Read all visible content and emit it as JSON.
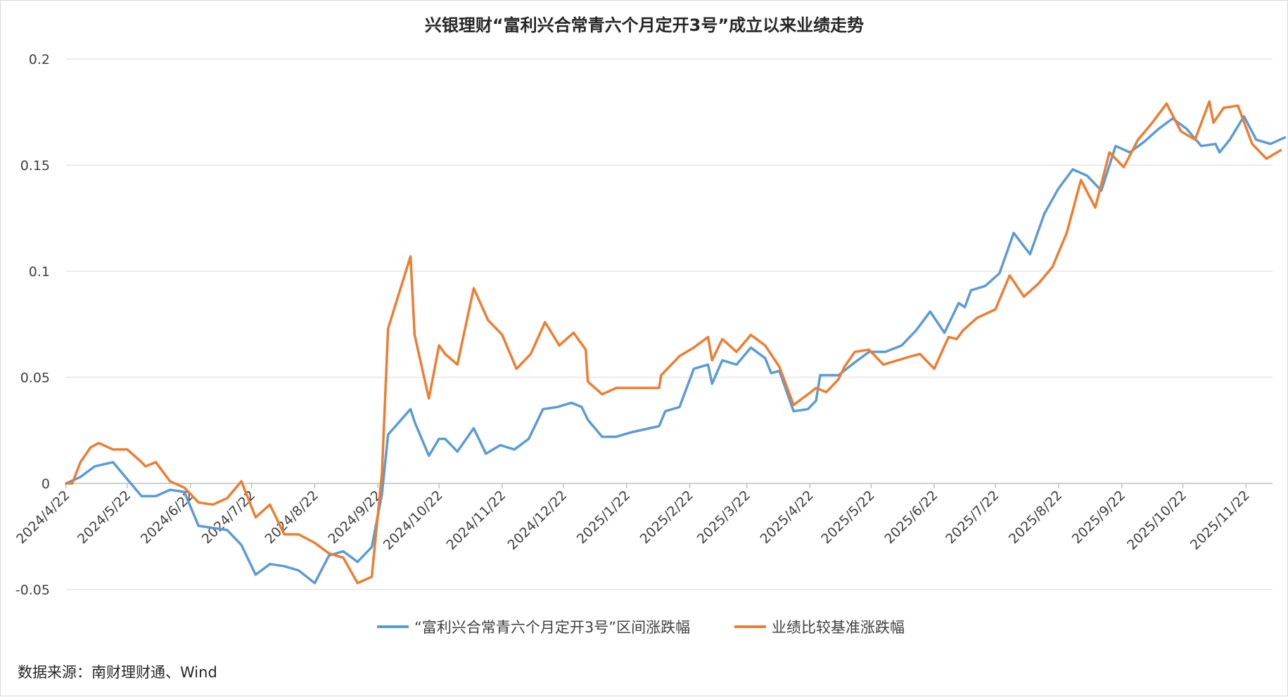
{
  "chart_data": {
    "type": "line",
    "title": "兴银理财“富利兴合常青六个月定开3号”成立以来业绩走势",
    "source_note": "数据来源：南财理财通、Wind",
    "legend_position": "bottom",
    "grid": true,
    "ylim": [
      -0.05,
      0.2
    ],
    "yticks": [
      -0.05,
      0,
      0.05,
      0.1,
      0.15,
      0.2
    ],
    "ytick_labels": [
      "-0.05",
      "0",
      "0.05",
      "0.1",
      "0.15",
      "0.2"
    ],
    "xlim": [
      "2024-04-22",
      "2025-12-05"
    ],
    "x_tick_dates": [
      "2024-04-22",
      "2024-05-22",
      "2024-06-22",
      "2024-07-22",
      "2024-08-22",
      "2024-09-22",
      "2024-10-22",
      "2024-11-22",
      "2024-12-22",
      "2025-01-22",
      "2025-02-22",
      "2025-03-22",
      "2025-04-22",
      "2025-05-22",
      "2025-06-22",
      "2025-07-22",
      "2025-08-22",
      "2025-09-22",
      "2025-10-22",
      "2025-11-22"
    ],
    "x_tick_labels": [
      "2024/4/22",
      "2024/5/22",
      "2024/6/22",
      "2024/7/22",
      "2024/8/22",
      "2024/9/22",
      "2024/10/22",
      "2024/11/22",
      "2024/12/22",
      "2025/1/22",
      "2025/2/22",
      "2025/3/22",
      "2025/4/22",
      "2025/5/22",
      "2025/6/22",
      "2025/7/22",
      "2025/8/22",
      "2025/9/22",
      "2025/10/22",
      "2025/11/22"
    ],
    "series": [
      {
        "name": "“富利兴合常青六个月定开3号”区间涨跌幅",
        "color": "#5b9bd5",
        "points": [
          [
            "2024-04-22",
            0.0
          ],
          [
            "2024-04-29",
            0.003
          ],
          [
            "2024-05-06",
            0.008
          ],
          [
            "2024-05-15",
            0.01
          ],
          [
            "2024-05-22",
            0.002
          ],
          [
            "2024-05-29",
            -0.006
          ],
          [
            "2024-06-05",
            -0.006
          ],
          [
            "2024-06-12",
            -0.003
          ],
          [
            "2024-06-19",
            -0.004
          ],
          [
            "2024-06-26",
            -0.02
          ],
          [
            "2024-07-03",
            -0.021
          ],
          [
            "2024-07-10",
            -0.022
          ],
          [
            "2024-07-17",
            -0.029
          ],
          [
            "2024-07-24",
            -0.043
          ],
          [
            "2024-07-31",
            -0.038
          ],
          [
            "2024-08-07",
            -0.039
          ],
          [
            "2024-08-14",
            -0.041
          ],
          [
            "2024-08-22",
            -0.047
          ],
          [
            "2024-08-29",
            -0.034
          ],
          [
            "2024-09-05",
            -0.032
          ],
          [
            "2024-09-12",
            -0.037
          ],
          [
            "2024-09-19",
            -0.03
          ],
          [
            "2024-09-24",
            -0.005
          ],
          [
            "2024-09-27",
            0.023
          ],
          [
            "2024-10-08",
            0.035
          ],
          [
            "2024-10-10",
            0.029
          ],
          [
            "2024-10-17",
            0.013
          ],
          [
            "2024-10-22",
            0.021
          ],
          [
            "2024-10-25",
            0.021
          ],
          [
            "2024-10-31",
            0.015
          ],
          [
            "2024-11-08",
            0.026
          ],
          [
            "2024-11-14",
            0.014
          ],
          [
            "2024-11-21",
            0.018
          ],
          [
            "2024-11-28",
            0.016
          ],
          [
            "2024-12-05",
            0.021
          ],
          [
            "2024-12-12",
            0.035
          ],
          [
            "2024-12-19",
            0.036
          ],
          [
            "2024-12-26",
            0.038
          ],
          [
            "2024-12-31",
            0.036
          ],
          [
            "2025-01-03",
            0.03
          ],
          [
            "2025-01-10",
            0.022
          ],
          [
            "2025-01-17",
            0.022
          ],
          [
            "2025-01-24",
            0.024
          ],
          [
            "2025-02-07",
            0.027
          ],
          [
            "2025-02-10",
            0.034
          ],
          [
            "2025-02-17",
            0.036
          ],
          [
            "2025-02-24",
            0.054
          ],
          [
            "2025-03-03",
            0.056
          ],
          [
            "2025-03-05",
            0.047
          ],
          [
            "2025-03-10",
            0.058
          ],
          [
            "2025-03-17",
            0.056
          ],
          [
            "2025-03-24",
            0.064
          ],
          [
            "2025-03-31",
            0.059
          ],
          [
            "2025-04-03",
            0.052
          ],
          [
            "2025-04-07",
            0.053
          ],
          [
            "2025-04-14",
            0.034
          ],
          [
            "2025-04-21",
            0.035
          ],
          [
            "2025-04-25",
            0.039
          ],
          [
            "2025-04-27",
            0.051
          ],
          [
            "2025-05-06",
            0.051
          ],
          [
            "2025-05-14",
            0.057
          ],
          [
            "2025-05-21",
            0.062
          ],
          [
            "2025-05-29",
            0.062
          ],
          [
            "2025-06-06",
            0.065
          ],
          [
            "2025-06-13",
            0.072
          ],
          [
            "2025-06-20",
            0.081
          ],
          [
            "2025-06-27",
            0.071
          ],
          [
            "2025-07-04",
            0.085
          ],
          [
            "2025-07-07",
            0.083
          ],
          [
            "2025-07-10",
            0.091
          ],
          [
            "2025-07-17",
            0.093
          ],
          [
            "2025-07-24",
            0.099
          ],
          [
            "2025-07-31",
            0.118
          ],
          [
            "2025-08-08",
            0.108
          ],
          [
            "2025-08-15",
            0.127
          ],
          [
            "2025-08-22",
            0.139
          ],
          [
            "2025-08-29",
            0.148
          ],
          [
            "2025-09-05",
            0.145
          ],
          [
            "2025-09-12",
            0.138
          ],
          [
            "2025-09-19",
            0.159
          ],
          [
            "2025-09-26",
            0.156
          ],
          [
            "2025-10-03",
            0.161
          ],
          [
            "2025-10-10",
            0.167
          ],
          [
            "2025-10-17",
            0.172
          ],
          [
            "2025-10-24",
            0.167
          ],
          [
            "2025-10-31",
            0.159
          ],
          [
            "2025-11-07",
            0.16
          ],
          [
            "2025-11-09",
            0.156
          ],
          [
            "2025-11-14",
            0.162
          ],
          [
            "2025-11-21",
            0.173
          ],
          [
            "2025-11-27",
            0.162
          ],
          [
            "2025-12-04",
            0.16
          ],
          [
            "2025-12-11",
            0.163
          ]
        ]
      },
      {
        "name": "业绩比较基准涨跌幅",
        "color": "#ed7d31",
        "points": [
          [
            "2024-04-22",
            0.0
          ],
          [
            "2024-04-25",
            0.0
          ],
          [
            "2024-04-29",
            0.01
          ],
          [
            "2024-05-04",
            0.017
          ],
          [
            "2024-05-08",
            0.019
          ],
          [
            "2024-05-15",
            0.016
          ],
          [
            "2024-05-22",
            0.016
          ],
          [
            "2024-05-29",
            0.01
          ],
          [
            "2024-05-31",
            0.008
          ],
          [
            "2024-06-05",
            0.01
          ],
          [
            "2024-06-12",
            0.001
          ],
          [
            "2024-06-19",
            -0.002
          ],
          [
            "2024-06-26",
            -0.009
          ],
          [
            "2024-07-03",
            -0.01
          ],
          [
            "2024-07-10",
            -0.007
          ],
          [
            "2024-07-17",
            0.001
          ],
          [
            "2024-07-24",
            -0.016
          ],
          [
            "2024-07-31",
            -0.01
          ],
          [
            "2024-08-07",
            -0.024
          ],
          [
            "2024-08-14",
            -0.024
          ],
          [
            "2024-08-22",
            -0.028
          ],
          [
            "2024-08-29",
            -0.033
          ],
          [
            "2024-09-05",
            -0.035
          ],
          [
            "2024-09-12",
            -0.047
          ],
          [
            "2024-09-19",
            -0.044
          ],
          [
            "2024-09-24",
            0.005
          ],
          [
            "2024-09-27",
            0.073
          ],
          [
            "2024-10-08",
            0.107
          ],
          [
            "2024-10-10",
            0.07
          ],
          [
            "2024-10-17",
            0.04
          ],
          [
            "2024-10-22",
            0.065
          ],
          [
            "2024-10-25",
            0.061
          ],
          [
            "2024-10-31",
            0.056
          ],
          [
            "2024-11-08",
            0.092
          ],
          [
            "2024-11-15",
            0.077
          ],
          [
            "2024-11-22",
            0.07
          ],
          [
            "2024-11-29",
            0.054
          ],
          [
            "2024-12-06",
            0.061
          ],
          [
            "2024-12-13",
            0.076
          ],
          [
            "2024-12-20",
            0.065
          ],
          [
            "2024-12-27",
            0.071
          ],
          [
            "2025-01-02",
            0.063
          ],
          [
            "2025-01-03",
            0.048
          ],
          [
            "2025-01-10",
            0.042
          ],
          [
            "2025-01-17",
            0.045
          ],
          [
            "2025-01-24",
            0.045
          ],
          [
            "2025-02-07",
            0.045
          ],
          [
            "2025-02-08",
            0.051
          ],
          [
            "2025-02-17",
            0.06
          ],
          [
            "2025-02-24",
            0.064
          ],
          [
            "2025-03-03",
            0.069
          ],
          [
            "2025-03-05",
            0.058
          ],
          [
            "2025-03-10",
            0.068
          ],
          [
            "2025-03-17",
            0.062
          ],
          [
            "2025-03-24",
            0.07
          ],
          [
            "2025-03-31",
            0.065
          ],
          [
            "2025-04-07",
            0.055
          ],
          [
            "2025-04-14",
            0.037
          ],
          [
            "2025-04-21",
            0.042
          ],
          [
            "2025-04-25",
            0.045
          ],
          [
            "2025-04-30",
            0.043
          ],
          [
            "2025-05-06",
            0.049
          ],
          [
            "2025-05-09",
            0.055
          ],
          [
            "2025-05-14",
            0.062
          ],
          [
            "2025-05-21",
            0.063
          ],
          [
            "2025-05-28",
            0.056
          ],
          [
            "2025-06-04",
            0.058
          ],
          [
            "2025-06-11",
            0.06
          ],
          [
            "2025-06-15",
            0.061
          ],
          [
            "2025-06-22",
            0.054
          ],
          [
            "2025-06-29",
            0.069
          ],
          [
            "2025-07-03",
            0.068
          ],
          [
            "2025-07-06",
            0.072
          ],
          [
            "2025-07-13",
            0.078
          ],
          [
            "2025-07-22",
            0.082
          ],
          [
            "2025-07-29",
            0.098
          ],
          [
            "2025-08-05",
            0.088
          ],
          [
            "2025-08-12",
            0.094
          ],
          [
            "2025-08-19",
            0.102
          ],
          [
            "2025-08-26",
            0.118
          ],
          [
            "2025-09-02",
            0.143
          ],
          [
            "2025-09-09",
            0.13
          ],
          [
            "2025-09-16",
            0.156
          ],
          [
            "2025-09-23",
            0.149
          ],
          [
            "2025-09-30",
            0.162
          ],
          [
            "2025-10-07",
            0.17
          ],
          [
            "2025-10-14",
            0.179
          ],
          [
            "2025-10-21",
            0.166
          ],
          [
            "2025-10-28",
            0.162
          ],
          [
            "2025-11-04",
            0.18
          ],
          [
            "2025-11-06",
            0.17
          ],
          [
            "2025-11-11",
            0.177
          ],
          [
            "2025-11-18",
            0.178
          ],
          [
            "2025-11-25",
            0.16
          ],
          [
            "2025-12-02",
            0.153
          ],
          [
            "2025-12-09",
            0.157
          ]
        ]
      }
    ]
  }
}
